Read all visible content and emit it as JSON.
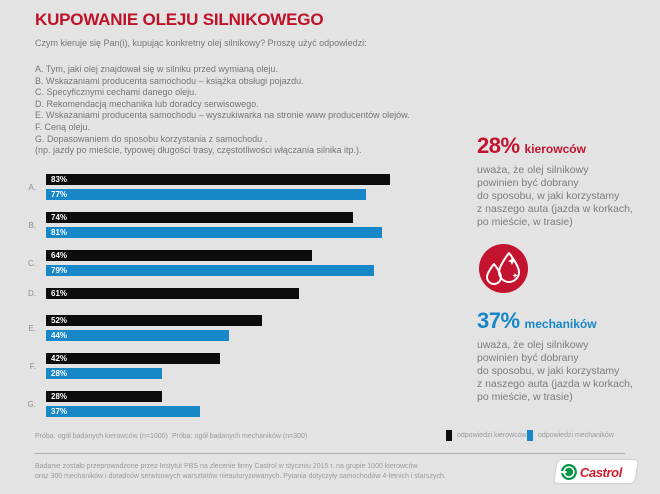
{
  "header": {
    "title": "KUPOWANIE OLEJU SILNIKOWEGO",
    "subtitle": "Czym kieruje się Pan(i), kupując konkretny olej silnikowy? Proszę użyć odpowiedzi:"
  },
  "options": [
    "A. Tym, jaki olej znajdował się w silniku przed wymianą oleju.",
    "B. Wskazaniami producenta samochodu – książka obsługi pojazdu.",
    "C. Specyficznymi cechami danego oleju.",
    "D. Rekomendacją mechanika lub doradcy serwisowego.",
    "E. Wskazaniami producenta samochodu – wyszukiwarka na stronie www producentów olejów.",
    "F. Ceną oleju.",
    "G. Dopasowaniem do sposobu korzystania z samochodu .",
    "(np. jazdy po mieście, typowej długości trasy, częstotliwości włączania silnika itp.)."
  ],
  "chart_data": {
    "type": "bar",
    "orientation": "horizontal",
    "categories": [
      "A",
      "B",
      "C",
      "D",
      "E",
      "F",
      "G"
    ],
    "series": [
      {
        "name": "odpowiedzi kierowców",
        "color": "#0c0c0c",
        "values": [
          83,
          74,
          64,
          61,
          52,
          42,
          28
        ]
      },
      {
        "name": "odpowiedzi mechaników",
        "color": "#1787c8",
        "values": [
          77,
          81,
          79,
          null,
          44,
          28,
          37
        ]
      }
    ],
    "value_suffix": "%",
    "xlim": [
      0,
      100
    ],
    "legend_position": "bottom-right",
    "grid": false
  },
  "samples": {
    "drivers": "Próba: ogół badanych kierowców (n=1000)",
    "mechanics": "Próba: ogół badanych mechaników (n=300)"
  },
  "legend": [
    {
      "label": "odpowiedzi kierowców",
      "color": "#0c0c0c"
    },
    {
      "label": "odpowiedzi mechaników",
      "color": "#1787c8"
    }
  ],
  "callouts": [
    {
      "stat": "28%",
      "group": "kierowców",
      "color": "#c3132f",
      "body": "uważa, że olej silnikowy\npowinien być dobrany\ndo sposobu, w jaki korzystamy\nz naszego auta (jazda w korkach,\npo mieście, w trasie)"
    },
    {
      "stat": "37%",
      "group": "mechaników",
      "color": "#1787c8",
      "body": "uważa, że olej silnikowy\npowinien być dobrany\ndo sposobu, w jaki korzystamy\nz naszego auta (jazda w korkach,\npo mieście, w trasie)"
    }
  ],
  "icons": {
    "oil_drop_badge": "oil-drops-badge",
    "badge_color": "#c3132f"
  },
  "footer": {
    "note": "Badanie zostało przeprowadzone przez Instytut PBS na zlecenie firmy Castrol w styczniu 2015 r. na grupie 1000 kierowców\noraz 300 mechaników i doradców serwisowych warsztatów nieautoryzowanych. Pytania dotyczyły samochodów 4-letnich i starszych.",
    "brand": "Castrol"
  }
}
